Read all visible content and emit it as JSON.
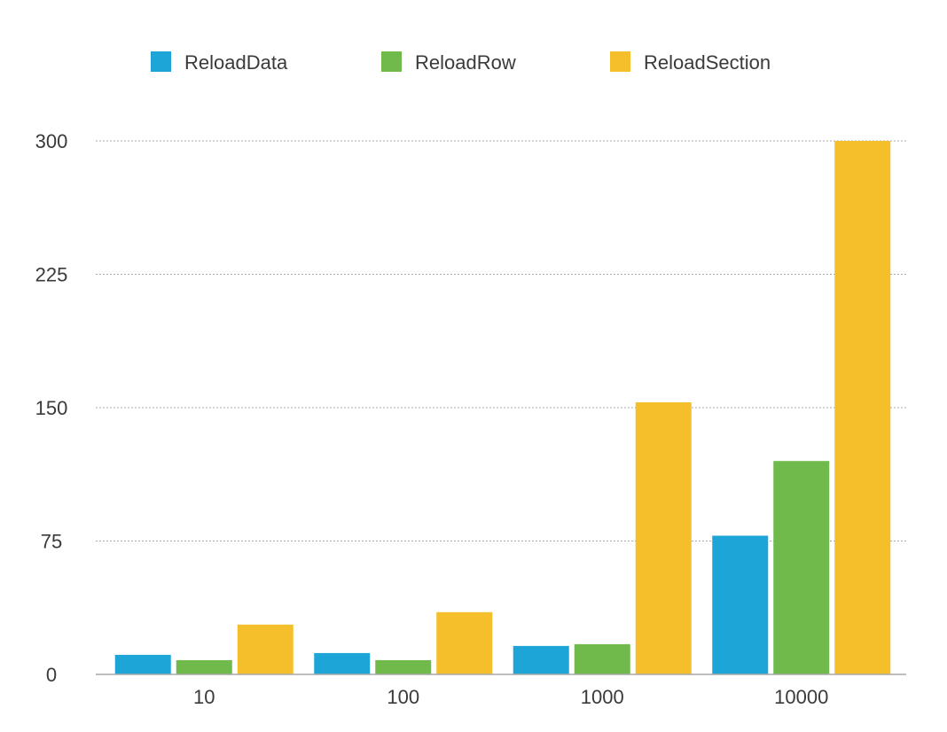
{
  "chart_data": {
    "type": "bar",
    "categories": [
      "10",
      "100",
      "1000",
      "10000"
    ],
    "series": [
      {
        "name": "ReloadData",
        "color": "#1ea5d8",
        "values": [
          11,
          12,
          16,
          78
        ]
      },
      {
        "name": "ReloadRow",
        "color": "#6fba4a",
        "values": [
          8,
          8,
          17,
          120
        ]
      },
      {
        "name": "ReloadSection",
        "color": "#f4bf2a",
        "values": [
          28,
          35,
          153,
          300
        ]
      }
    ],
    "yticks": [
      0,
      75,
      150,
      225,
      300
    ],
    "ylim": [
      0,
      300
    ],
    "grid": true,
    "legend_position": "top",
    "title": "",
    "xlabel": "",
    "ylabel": ""
  }
}
